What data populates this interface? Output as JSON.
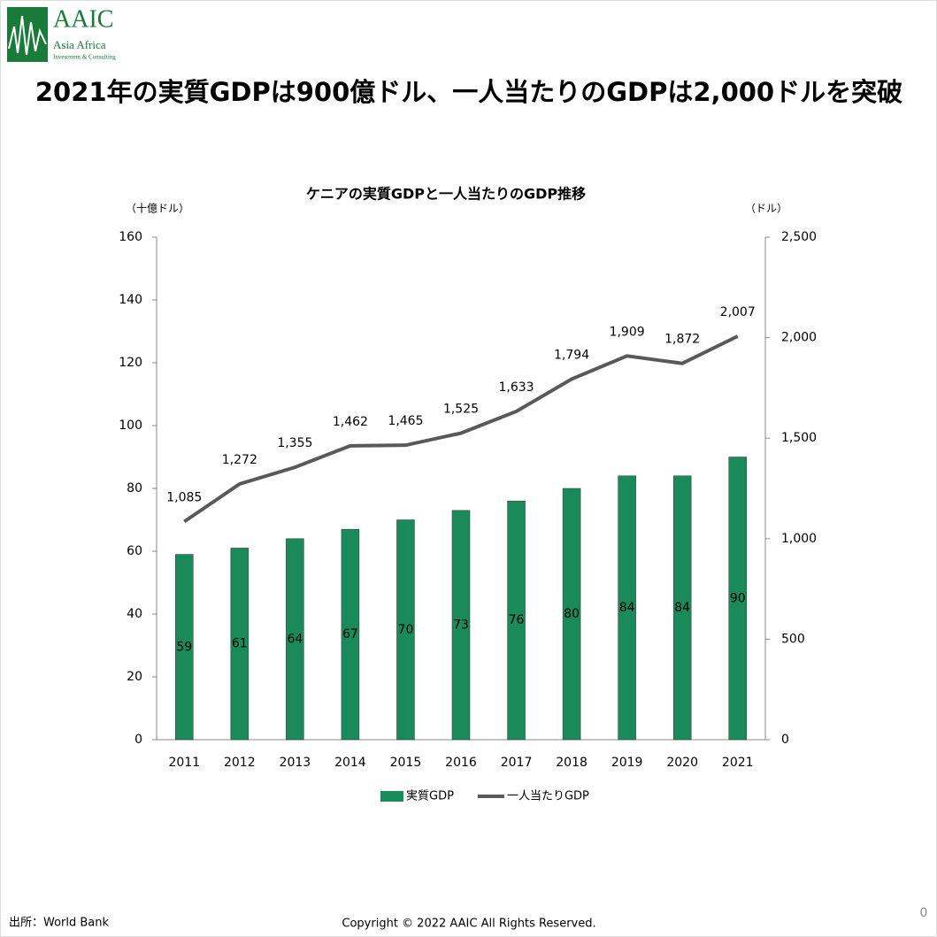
{
  "logo": {
    "name": "AAIC",
    "line1": "Asia Africa",
    "line2": "Investment & Consulting"
  },
  "headline": "2021年の実質GDPは900億ドル、一人当たりのGDPは2,000ドルを突破",
  "chart_data": {
    "type": "combo",
    "title": "ケニアの実質GDPと一人当たりのGDP推移",
    "y_label": "（十億ドル）",
    "y2_label": "（ドル）",
    "categories": [
      "2011",
      "2012",
      "2013",
      "2014",
      "2015",
      "2016",
      "2017",
      "2018",
      "2019",
      "2020",
      "2021"
    ],
    "series": [
      {
        "name": "実質GDP",
        "kind": "bar",
        "color": "#1a8a5a",
        "values": [
          59,
          61,
          64,
          67,
          70,
          73,
          76,
          80,
          84,
          84,
          90
        ]
      },
      {
        "name": "一人当たりGDP",
        "kind": "line",
        "axis": "y2",
        "color": "#595959",
        "values": [
          1085,
          1272,
          1355,
          1462,
          1465,
          1525,
          1633,
          1794,
          1909,
          1872,
          2007
        ],
        "value_labels": [
          "1,085",
          "1,272",
          "1,355",
          "1,462",
          "1,465",
          "1,525",
          "1,633",
          "1,794",
          "1,909",
          "1,872",
          "2,007"
        ]
      }
    ],
    "ylim": [
      0,
      160
    ],
    "yticks": [
      0,
      20,
      40,
      60,
      80,
      100,
      120,
      140,
      160
    ],
    "y2lim": [
      0,
      2500
    ],
    "y2ticks": [
      0,
      500,
      {
        "value": 1000,
        "label": "1,000"
      },
      {
        "value": 1500,
        "label": "1,500"
      },
      {
        "value": 2000,
        "label": "2,000"
      },
      {
        "value": 2500,
        "label": "2,500"
      }
    ],
    "legend": "bottom"
  },
  "footer": {
    "source": "出所：World Bank",
    "copyright": "Copyright © 2022 AAIC All Rights Reserved.",
    "page": "0"
  }
}
